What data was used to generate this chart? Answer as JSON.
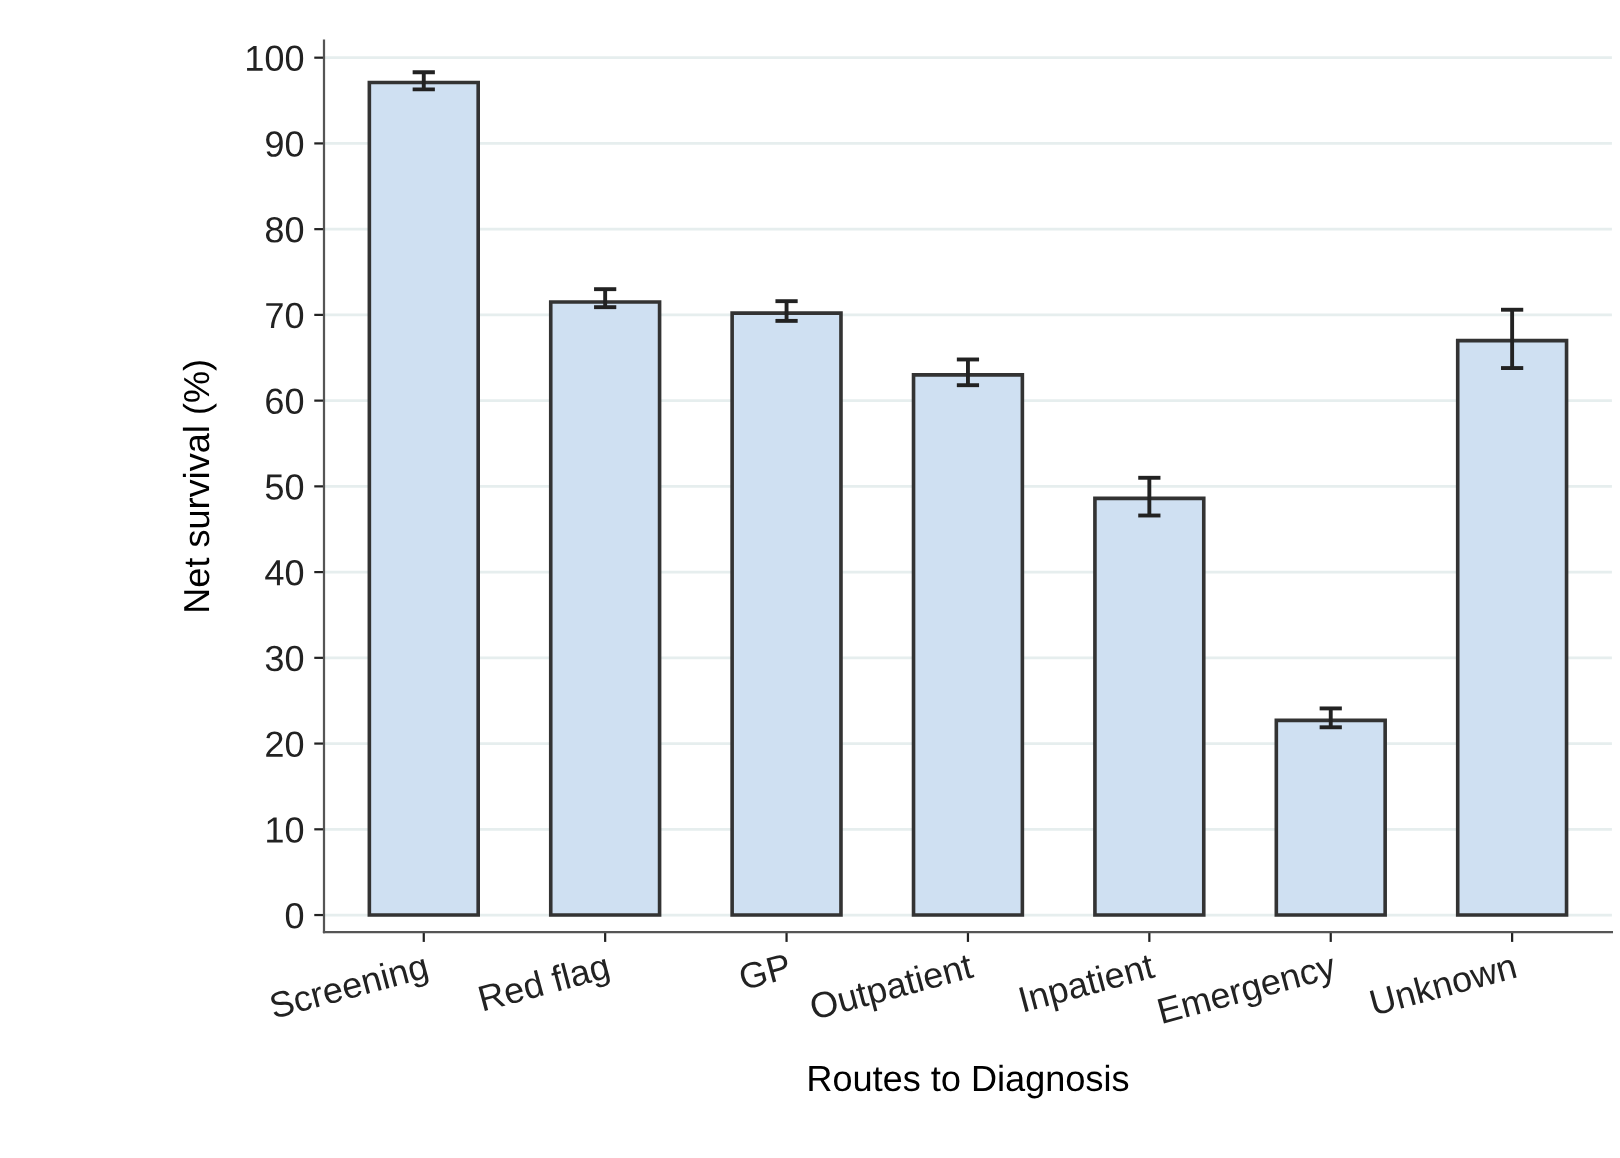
{
  "chart_data": {
    "type": "bar",
    "xlabel": "Routes to Diagnosis",
    "ylabel": "Net survival (%)",
    "categories": [
      "Screening",
      "Red flag",
      "GP",
      "Outpatient",
      "Inpatient",
      "Emergency",
      "Unknown"
    ],
    "values": [
      97.1,
      71.5,
      70.2,
      63.0,
      48.6,
      22.7,
      67.0
    ],
    "errors": [
      [
        96.3,
        98.3
      ],
      [
        70.9,
        73.0
      ],
      [
        69.3,
        71.6
      ],
      [
        61.8,
        64.8
      ],
      [
        46.6,
        51.0
      ],
      [
        21.9,
        24.1
      ],
      [
        63.8,
        70.6
      ]
    ],
    "color": "#cfe0f2",
    "ylim": [
      -2,
      102
    ],
    "yticks": [
      0,
      10,
      20,
      30,
      40,
      50,
      60,
      70,
      80,
      90,
      100
    ],
    "grid": "y",
    "legend": false
  }
}
